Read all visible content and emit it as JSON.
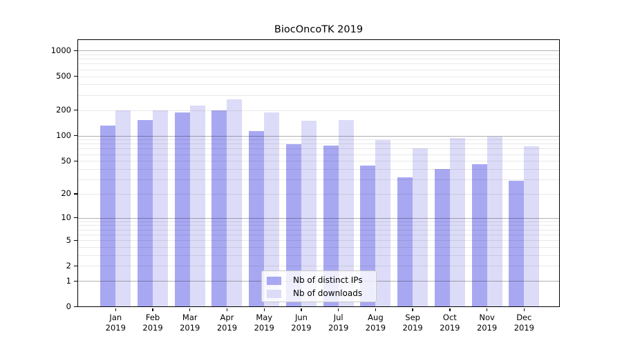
{
  "chart_data": {
    "type": "bar",
    "title": "BiocOncoTK 2019",
    "categories": [
      "Jan",
      "Feb",
      "Mar",
      "Apr",
      "May",
      "Jun",
      "Jul",
      "Aug",
      "Sep",
      "Oct",
      "Nov",
      "Dec"
    ],
    "category_year": "2019",
    "series": [
      {
        "name": "Nb of distinct IPs",
        "color": "#a8a8f2",
        "values": [
          131,
          152,
          186,
          200,
          113,
          79,
          76,
          44,
          32,
          40,
          46,
          29
        ]
      },
      {
        "name": "Nb of downloads",
        "color": "#dcdcf8",
        "values": [
          200,
          198,
          228,
          268,
          188,
          149,
          152,
          88,
          70,
          94,
          97,
          75
        ]
      }
    ],
    "yscale": "log1p",
    "ylim": [
      0,
      1330
    ],
    "ytick_labels": [
      "0",
      "1",
      "2",
      "5",
      "10",
      "20",
      "50",
      "100",
      "200",
      "500",
      "1000"
    ],
    "yticks": [
      0,
      1,
      2,
      5,
      10,
      20,
      50,
      100,
      200,
      500,
      1000
    ],
    "major_gridlines": [
      1,
      10,
      100,
      1000
    ],
    "minor_gridline_decades": [
      1,
      10,
      100
    ],
    "grid": true,
    "legend_position": "lower center",
    "xlabel": "",
    "ylabel": ""
  },
  "style": {
    "background": "#ffffff",
    "frame_color": "#000000",
    "major_grid_color": "rgba(0,0,0,0.31)",
    "minor_grid_color": "rgba(0,0,0,0.09)",
    "text_color": "#000000",
    "legend_border_color": "#c9c9c9"
  }
}
